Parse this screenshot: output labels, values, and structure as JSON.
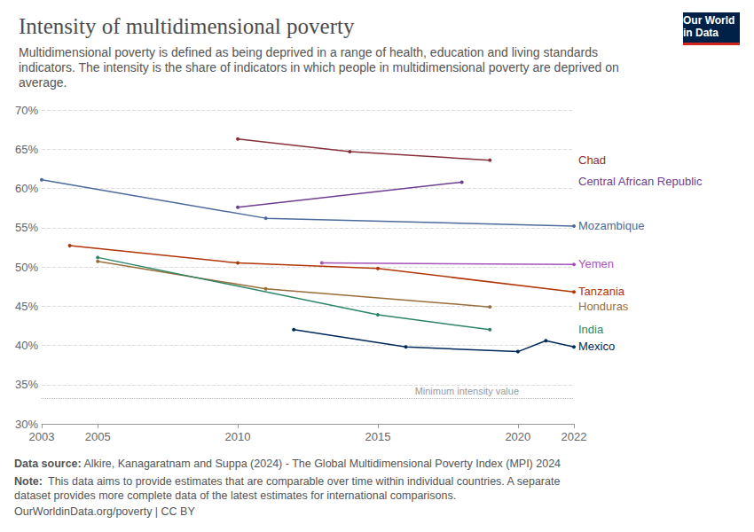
{
  "chart_data": {
    "type": "line",
    "title": "Intensity of multidimensional poverty",
    "subtitle": "Multidimensional poverty is defined as being deprived in a range of health, education and living standards indicators. The intensity is the share of indicators in which people in multidimensional poverty are deprived on average.",
    "xlim": [
      2003,
      2022
    ],
    "xticks": [
      2003,
      2005,
      2010,
      2015,
      2020,
      2022
    ],
    "ylim": [
      30,
      70
    ],
    "yticks": [
      {
        "value": 30,
        "label": "30%"
      },
      {
        "value": 35,
        "label": "35%"
      },
      {
        "value": 40,
        "label": "40%"
      },
      {
        "value": 45,
        "label": "45%"
      },
      {
        "value": 50,
        "label": "50%"
      },
      {
        "value": 55,
        "label": "55%"
      },
      {
        "value": 60,
        "label": "60%"
      },
      {
        "value": 65,
        "label": "65%"
      },
      {
        "value": 70,
        "label": "70%"
      }
    ],
    "grid": true,
    "marker": "circle",
    "series": [
      {
        "name": "Chad",
        "color": "#883039",
        "x": [
          2010,
          2014,
          2019
        ],
        "values": [
          66.3,
          64.7,
          63.6
        ]
      },
      {
        "name": "Central African Republic",
        "color": "#6d3e91",
        "x": [
          2010,
          2018
        ],
        "values": [
          57.6,
          60.8
        ]
      },
      {
        "name": "Mozambique",
        "color": "#4c6a9c",
        "x": [
          2003,
          2011,
          2022
        ],
        "values": [
          61.1,
          56.2,
          55.2
        ]
      },
      {
        "name": "Yemen",
        "color": "#a652ba",
        "x": [
          2013,
          2022
        ],
        "values": [
          50.5,
          50.3
        ]
      },
      {
        "name": "Tanzania",
        "color": "#b13507",
        "x": [
          2004,
          2010,
          2015,
          2022
        ],
        "values": [
          52.7,
          50.5,
          49.8,
          46.8
        ]
      },
      {
        "name": "Honduras",
        "color": "#996d39",
        "x": [
          2005,
          2011,
          2019
        ],
        "values": [
          50.7,
          47.2,
          44.9
        ]
      },
      {
        "name": "India",
        "color": "#2c8465",
        "x": [
          2005,
          2015,
          2019
        ],
        "values": [
          51.2,
          43.9,
          42.0
        ]
      },
      {
        "name": "Mexico",
        "color": "#00295b",
        "x": [
          2012,
          2016,
          2020,
          2021,
          2022
        ],
        "values": [
          42.0,
          39.8,
          39.2,
          40.6,
          39.8
        ]
      }
    ],
    "annotations": [
      {
        "text": "Minimum intensity value",
        "y": 33.3
      }
    ],
    "source": {
      "label": "Data source:",
      "text": "Alkire, Kanagaratnam and Suppa (2024) - The Global Multidimensional Poverty Index (MPI) 2024"
    },
    "note": {
      "label": "Note:",
      "text": "This data aims to provide estimates that are comparable over time within individual countries. A separate dataset provides more complete data of the latest estimates for international comparisons."
    },
    "footer": "OurWorldinData.org/poverty | CC BY",
    "logo": [
      "Our World",
      "in Data"
    ]
  }
}
